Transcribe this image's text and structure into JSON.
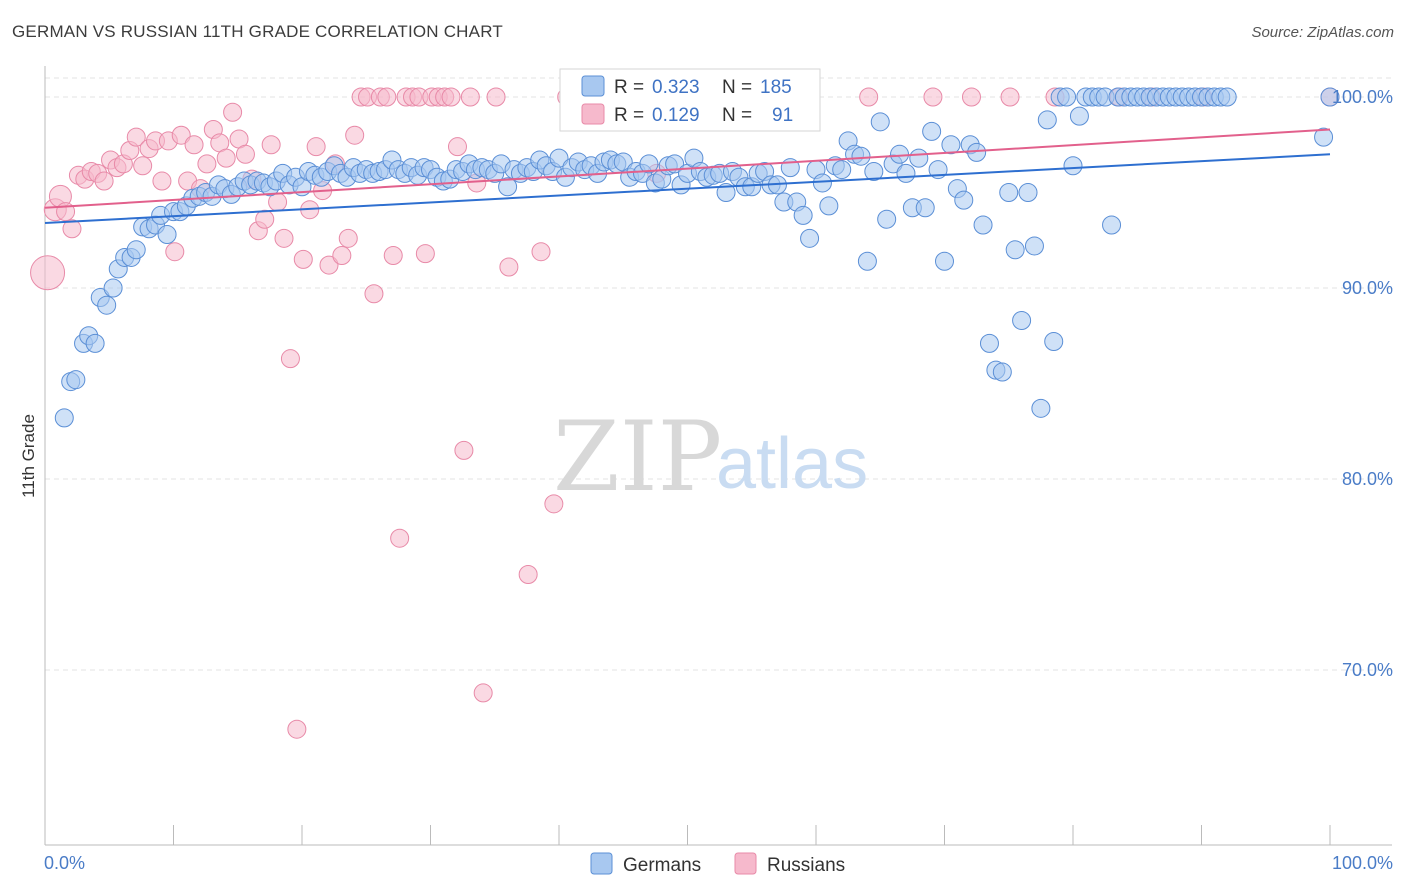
{
  "title": "GERMAN VS RUSSIAN 11TH GRADE CORRELATION CHART",
  "source": "Source: ZipAtlas.com",
  "chart_data": {
    "type": "scatter",
    "ylabel": "11th Grade",
    "xlim": [
      0,
      100
    ],
    "ylim": [
      60.5,
      101.5
    ],
    "x_tick_labels": [
      "0.0%",
      "100.0%"
    ],
    "y_ticks": [
      100,
      90,
      80,
      70
    ],
    "y_tick_labels": [
      "100.0%",
      "90.0%",
      "80.0%",
      "70.0%"
    ],
    "grid": true,
    "legend": {
      "position": "top-center",
      "entries": [
        {
          "r_label": "R =",
          "r_value": "0.323",
          "n_label": "N =",
          "n_value": "185"
        },
        {
          "r_label": "R =",
          "r_value": "0.129",
          "n_label": "N =",
          "n_value": "91"
        }
      ]
    },
    "bottom_legend": [
      "Germans",
      "Russians"
    ],
    "colors": {
      "germans_fill": "#a8c8f0",
      "germans_stroke": "#5b8fd6",
      "germans_line": "#2e6fd0",
      "russians_fill": "#f6b9cc",
      "russians_stroke": "#e88aa8",
      "russians_line": "#e2608c"
    },
    "series": [
      {
        "name": "Germans",
        "trend": [
          [
            0,
            93.4
          ],
          [
            100,
            97.0
          ]
        ],
        "points": [
          [
            1.5,
            83.2
          ],
          [
            2,
            85.1
          ],
          [
            2.4,
            85.2
          ],
          [
            3,
            87.1
          ],
          [
            3.4,
            87.5
          ],
          [
            3.9,
            87.1
          ],
          [
            4.3,
            89.5
          ],
          [
            4.8,
            89.1
          ],
          [
            5.3,
            90.0
          ],
          [
            5.7,
            91.0
          ],
          [
            6.2,
            91.6
          ],
          [
            6.7,
            91.6
          ],
          [
            7.1,
            92.0
          ],
          [
            7.6,
            93.2
          ],
          [
            8.1,
            93.1
          ],
          [
            8.6,
            93.3
          ],
          [
            9.0,
            93.8
          ],
          [
            9.5,
            92.8
          ],
          [
            10,
            94.0
          ],
          [
            10.5,
            94.0
          ],
          [
            11,
            94.3
          ],
          [
            11.5,
            94.7
          ],
          [
            12,
            94.8
          ],
          [
            12.5,
            95.0
          ],
          [
            13,
            94.8
          ],
          [
            13.5,
            95.4
          ],
          [
            14,
            95.2
          ],
          [
            14.5,
            94.9
          ],
          [
            15,
            95.3
          ],
          [
            15.5,
            95.6
          ],
          [
            16,
            95.4
          ],
          [
            16.5,
            95.6
          ],
          [
            17,
            95.5
          ],
          [
            17.5,
            95.3
          ],
          [
            18,
            95.6
          ],
          [
            18.5,
            96.0
          ],
          [
            19,
            95.4
          ],
          [
            19.5,
            95.8
          ],
          [
            20,
            95.3
          ],
          [
            20.5,
            96.1
          ],
          [
            21,
            95.9
          ],
          [
            21.5,
            95.8
          ],
          [
            22,
            96.1
          ],
          [
            22.5,
            96.4
          ],
          [
            23,
            96.0
          ],
          [
            23.5,
            95.8
          ],
          [
            24,
            96.3
          ],
          [
            24.5,
            96.0
          ],
          [
            25,
            96.2
          ],
          [
            25.5,
            96.0
          ],
          [
            26,
            96.1
          ],
          [
            26.5,
            96.2
          ],
          [
            27,
            96.7
          ],
          [
            27.5,
            96.2
          ],
          [
            28,
            96.0
          ],
          [
            28.5,
            96.3
          ],
          [
            29,
            95.9
          ],
          [
            29.5,
            96.3
          ],
          [
            30,
            96.2
          ],
          [
            30.5,
            95.8
          ],
          [
            31,
            95.6
          ],
          [
            31.5,
            95.7
          ],
          [
            32,
            96.2
          ],
          [
            32.5,
            96.1
          ],
          [
            33,
            96.5
          ],
          [
            33.5,
            96.2
          ],
          [
            34,
            96.3
          ],
          [
            34.5,
            96.2
          ],
          [
            35,
            96.0
          ],
          [
            35.5,
            96.5
          ],
          [
            36,
            95.3
          ],
          [
            36.5,
            96.2
          ],
          [
            37,
            96.0
          ],
          [
            37.5,
            96.3
          ],
          [
            38,
            96.1
          ],
          [
            38.5,
            96.7
          ],
          [
            39,
            96.4
          ],
          [
            39.5,
            96.1
          ],
          [
            40,
            96.8
          ],
          [
            40.5,
            95.8
          ],
          [
            41,
            96.3
          ],
          [
            41.5,
            96.6
          ],
          [
            42,
            96.2
          ],
          [
            42.5,
            96.4
          ],
          [
            43,
            96.0
          ],
          [
            43.5,
            96.6
          ],
          [
            44,
            96.7
          ],
          [
            44.5,
            96.5
          ],
          [
            45,
            96.6
          ],
          [
            45.5,
            95.8
          ],
          [
            46,
            96.1
          ],
          [
            46.5,
            96.0
          ],
          [
            47,
            96.5
          ],
          [
            47.5,
            95.5
          ],
          [
            48,
            95.7
          ],
          [
            48.5,
            96.4
          ],
          [
            49,
            96.5
          ],
          [
            49.5,
            95.4
          ],
          [
            50,
            96.0
          ],
          [
            50.5,
            96.8
          ],
          [
            51,
            96.1
          ],
          [
            51.5,
            95.8
          ],
          [
            52,
            95.9
          ],
          [
            52.5,
            96.0
          ],
          [
            53,
            95.0
          ],
          [
            53.5,
            96.1
          ],
          [
            54,
            95.8
          ],
          [
            54.5,
            95.3
          ],
          [
            55,
            95.3
          ],
          [
            55.5,
            96.0
          ],
          [
            56,
            96.1
          ],
          [
            56.5,
            95.4
          ],
          [
            57,
            95.4
          ],
          [
            57.5,
            94.5
          ],
          [
            58,
            96.3
          ],
          [
            58.5,
            94.5
          ],
          [
            59,
            93.8
          ],
          [
            59.5,
            92.6
          ],
          [
            60,
            96.2
          ],
          [
            60.5,
            95.5
          ],
          [
            61,
            94.3
          ],
          [
            61.5,
            96.4
          ],
          [
            62,
            96.2
          ],
          [
            62.5,
            97.7
          ],
          [
            63,
            97.0
          ],
          [
            63.5,
            96.9
          ],
          [
            64,
            91.4
          ],
          [
            64.5,
            96.1
          ],
          [
            65,
            98.7
          ],
          [
            65.5,
            93.6
          ],
          [
            66,
            96.5
          ],
          [
            66.5,
            97.0
          ],
          [
            67,
            96.0
          ],
          [
            67.5,
            94.2
          ],
          [
            68,
            96.8
          ],
          [
            68.5,
            94.2
          ],
          [
            69,
            98.2
          ],
          [
            69.5,
            96.2
          ],
          [
            70,
            91.4
          ],
          [
            70.5,
            97.5
          ],
          [
            71,
            95.2
          ],
          [
            71.5,
            94.6
          ],
          [
            72,
            97.5
          ],
          [
            72.5,
            97.1
          ],
          [
            73,
            93.3
          ],
          [
            73.5,
            87.1
          ],
          [
            74,
            85.7
          ],
          [
            74.5,
            85.6
          ],
          [
            75,
            95.0
          ],
          [
            75.5,
            92.0
          ],
          [
            76,
            88.3
          ],
          [
            76.5,
            95.0
          ],
          [
            77,
            92.2
          ],
          [
            77.5,
            83.7
          ],
          [
            78,
            98.8
          ],
          [
            78.5,
            87.2
          ],
          [
            79,
            100
          ],
          [
            79.5,
            100
          ],
          [
            80,
            96.4
          ],
          [
            80.5,
            99.0
          ],
          [
            81,
            100
          ],
          [
            81.5,
            100
          ],
          [
            82,
            100
          ],
          [
            82.5,
            100
          ],
          [
            83,
            93.3
          ],
          [
            83.5,
            100
          ],
          [
            84,
            100
          ],
          [
            84.5,
            100
          ],
          [
            85,
            100
          ],
          [
            85.5,
            100
          ],
          [
            86,
            100
          ],
          [
            86.5,
            100
          ],
          [
            87,
            100
          ],
          [
            87.5,
            100
          ],
          [
            88,
            100
          ],
          [
            88.5,
            100
          ],
          [
            89,
            100
          ],
          [
            89.5,
            100
          ],
          [
            90,
            100
          ],
          [
            90.5,
            100
          ],
          [
            91,
            100
          ],
          [
            91.5,
            100
          ],
          [
            92,
            100
          ],
          [
            99.5,
            97.9
          ],
          [
            100,
            100
          ]
        ]
      },
      {
        "name": "Russians",
        "trend": [
          [
            0,
            94.2
          ],
          [
            100,
            98.3
          ]
        ],
        "points": [
          [
            0.2,
            90.8
          ],
          [
            0.8,
            94.1
          ],
          [
            1.2,
            94.8
          ],
          [
            1.6,
            94.0
          ],
          [
            2.1,
            93.1
          ],
          [
            2.6,
            95.9
          ],
          [
            3.1,
            95.7
          ],
          [
            3.6,
            96.1
          ],
          [
            4.1,
            96.0
          ],
          [
            4.6,
            95.6
          ],
          [
            5.1,
            96.7
          ],
          [
            5.6,
            96.3
          ],
          [
            6.1,
            96.5
          ],
          [
            6.6,
            97.2
          ],
          [
            7.1,
            97.9
          ],
          [
            7.6,
            96.4
          ],
          [
            8.1,
            97.3
          ],
          [
            8.6,
            97.7
          ],
          [
            9.1,
            95.6
          ],
          [
            9.6,
            97.7
          ],
          [
            10.1,
            91.9
          ],
          [
            10.6,
            98.0
          ],
          [
            11.1,
            95.6
          ],
          [
            11.6,
            97.5
          ],
          [
            12.1,
            95.2
          ],
          [
            12.6,
            96.5
          ],
          [
            13.1,
            98.3
          ],
          [
            13.6,
            97.6
          ],
          [
            14.1,
            96.8
          ],
          [
            14.6,
            99.2
          ],
          [
            15.1,
            97.8
          ],
          [
            15.6,
            97.0
          ],
          [
            16.1,
            95.7
          ],
          [
            16.6,
            93.0
          ],
          [
            17.1,
            93.6
          ],
          [
            17.6,
            97.5
          ],
          [
            18.1,
            94.5
          ],
          [
            18.6,
            92.6
          ],
          [
            19.1,
            86.3
          ],
          [
            19.6,
            66.9
          ],
          [
            20.1,
            91.5
          ],
          [
            20.6,
            94.1
          ],
          [
            21.1,
            97.4
          ],
          [
            21.6,
            95.1
          ],
          [
            22.1,
            91.2
          ],
          [
            22.6,
            96.5
          ],
          [
            23.1,
            91.7
          ],
          [
            23.6,
            92.6
          ],
          [
            24.1,
            98.0
          ],
          [
            24.6,
            100
          ],
          [
            25.1,
            100
          ],
          [
            25.6,
            89.7
          ],
          [
            26.1,
            100
          ],
          [
            26.6,
            100
          ],
          [
            27.1,
            91.7
          ],
          [
            27.6,
            76.9
          ],
          [
            28.1,
            100
          ],
          [
            28.6,
            100
          ],
          [
            29.1,
            100
          ],
          [
            29.6,
            91.8
          ],
          [
            30.1,
            100
          ],
          [
            30.6,
            100
          ],
          [
            31.1,
            100
          ],
          [
            31.6,
            100
          ],
          [
            32.1,
            97.4
          ],
          [
            32.6,
            81.5
          ],
          [
            33.1,
            100
          ],
          [
            33.6,
            95.5
          ],
          [
            34.1,
            68.8
          ],
          [
            35.1,
            100
          ],
          [
            36.1,
            91.1
          ],
          [
            37.6,
            75.0
          ],
          [
            38.6,
            91.9
          ],
          [
            39.6,
            78.7
          ],
          [
            40.6,
            100
          ],
          [
            43.6,
            100
          ],
          [
            46.1,
            100
          ],
          [
            49.6,
            100
          ],
          [
            53.6,
            100
          ],
          [
            64.1,
            100
          ],
          [
            72.1,
            100
          ],
          [
            78.6,
            100
          ],
          [
            83.6,
            100
          ],
          [
            90.1,
            100
          ],
          [
            100,
            100
          ],
          [
            47.6,
            96.0
          ],
          [
            50.6,
            100
          ],
          [
            56.1,
            100
          ],
          [
            59.1,
            100
          ],
          [
            69.1,
            100
          ],
          [
            75.1,
            100
          ],
          [
            86.1,
            100
          ]
        ]
      }
    ]
  }
}
